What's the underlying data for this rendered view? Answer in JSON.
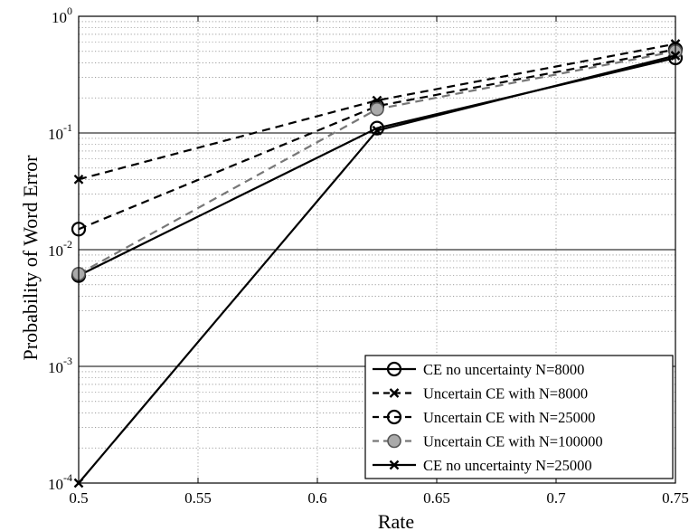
{
  "chart_data": {
    "type": "line",
    "title": "",
    "xlabel": "Rate",
    "ylabel": "Probability of Word Error",
    "xlim": [
      0.5,
      0.75
    ],
    "ylim": [
      0.0001,
      1
    ],
    "yscale": "log",
    "grid": true,
    "legend_position": "bottom-right",
    "x_ticks": [
      "0.5",
      "0.55",
      "0.6",
      "0.65",
      "0.7",
      "0.75"
    ],
    "y_ticks": [
      {
        "base": "10",
        "exp": "-4"
      },
      {
        "base": "10",
        "exp": "-3"
      },
      {
        "base": "10",
        "exp": "-2"
      },
      {
        "base": "10",
        "exp": "-1"
      },
      {
        "base": "10",
        "exp": "0"
      }
    ],
    "series": [
      {
        "name": "CE no uncertainty N=8000",
        "x": [
          0.5,
          0.625,
          0.75
        ],
        "y": [
          0.006,
          0.11,
          0.44
        ],
        "marker": "circle-open",
        "dash": "solid",
        "color": "#000000"
      },
      {
        "name": "Uncertain CE with N=8000",
        "x": [
          0.5,
          0.625,
          0.75
        ],
        "y": [
          0.04,
          0.19,
          0.58
        ],
        "marker": "x",
        "dash": "dashed",
        "color": "#000000"
      },
      {
        "name": "Uncertain CE with N=25000",
        "x": [
          0.5,
          0.625,
          0.75
        ],
        "y": [
          0.015,
          0.17,
          0.52
        ],
        "marker": "circle-open",
        "dash": "dashed",
        "color": "#000000"
      },
      {
        "name": "Uncertain CE with N=100000",
        "x": [
          0.5,
          0.625,
          0.75
        ],
        "y": [
          0.0062,
          0.16,
          0.5
        ],
        "marker": "circle-gray",
        "dash": "dashed",
        "color": "#777777"
      },
      {
        "name": "CE no uncertainty N=25000",
        "x": [
          0.5,
          0.625,
          0.75
        ],
        "y": [
          0.0001,
          0.105,
          0.46
        ],
        "marker": "x",
        "dash": "solid",
        "color": "#000000"
      }
    ]
  }
}
